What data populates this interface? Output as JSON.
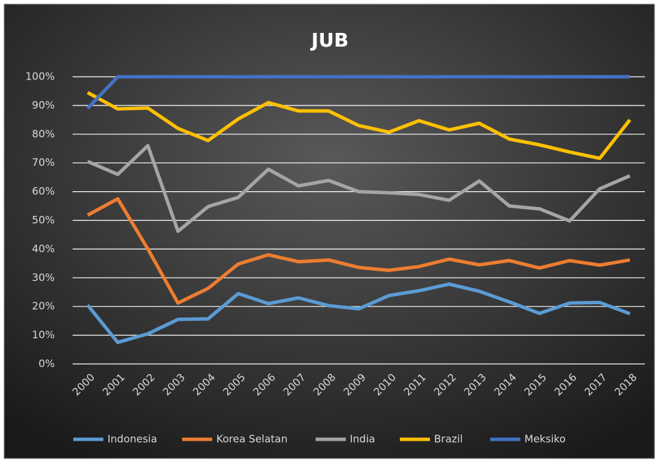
{
  "chart_data": {
    "type": "line",
    "title": "JUB",
    "categories": [
      "2000",
      "2001",
      "2002",
      "2003",
      "2004",
      "2005",
      "2006",
      "2007",
      "2008",
      "2009",
      "2010",
      "2011",
      "2012",
      "2013",
      "2014",
      "2015",
      "2016",
      "2017",
      "2018"
    ],
    "series": [
      {
        "name": "Indonesia",
        "color": "#5b9bd5",
        "values": [
          20.5,
          7.5,
          10.5,
          15.5,
          15.7,
          24.5,
          21,
          23,
          20.3,
          19.2,
          23.8,
          25.5,
          27.8,
          25.3,
          21.6,
          17.6,
          21.2,
          21.4,
          17.5
        ]
      },
      {
        "name": "Korea Selatan",
        "color": "#ed7d31",
        "values": [
          51.8,
          57.5,
          40,
          21.2,
          26.3,
          34.8,
          38,
          35.6,
          36.2,
          33.6,
          32.6,
          33.9,
          36.5,
          34.5,
          36,
          33.4,
          36,
          34.4,
          36.2
        ]
      },
      {
        "name": "India",
        "color": "#a5a5a5",
        "values": [
          70.5,
          66,
          76,
          46.2,
          54.8,
          58,
          67.8,
          62,
          63.9,
          60,
          59.6,
          59,
          57,
          63.7,
          55,
          54,
          49.8,
          61,
          65.5
        ]
      },
      {
        "name": "Brazil",
        "color": "#ffc000",
        "values": [
          94.5,
          88.8,
          89.1,
          82,
          77.8,
          85.3,
          91,
          88.1,
          88.1,
          83,
          80.7,
          84.7,
          81.5,
          83.8,
          78.3,
          76.3,
          73.8,
          71.6,
          85
        ]
      },
      {
        "name": "Meksiko",
        "color": "#4472c4",
        "values": [
          89,
          100,
          100,
          100,
          100,
          100,
          100,
          100,
          100,
          100,
          100,
          100,
          100,
          100,
          100,
          100,
          100,
          100,
          100
        ]
      }
    ],
    "ylim": [
      0,
      100
    ],
    "yticks": [
      {
        "value": 0,
        "label": "0%"
      },
      {
        "value": 10,
        "label": "10%"
      },
      {
        "value": 20,
        "label": "20%"
      },
      {
        "value": 30,
        "label": "30%"
      },
      {
        "value": 40,
        "label": "40%"
      },
      {
        "value": 50,
        "label": "50%"
      },
      {
        "value": 60,
        "label": "60%"
      },
      {
        "value": 70,
        "label": "70%"
      },
      {
        "value": 80,
        "label": "80%"
      },
      {
        "value": 90,
        "label": "90%"
      },
      {
        "value": 100,
        "label": "100%"
      }
    ],
    "grid": true,
    "legend": "bottom"
  }
}
